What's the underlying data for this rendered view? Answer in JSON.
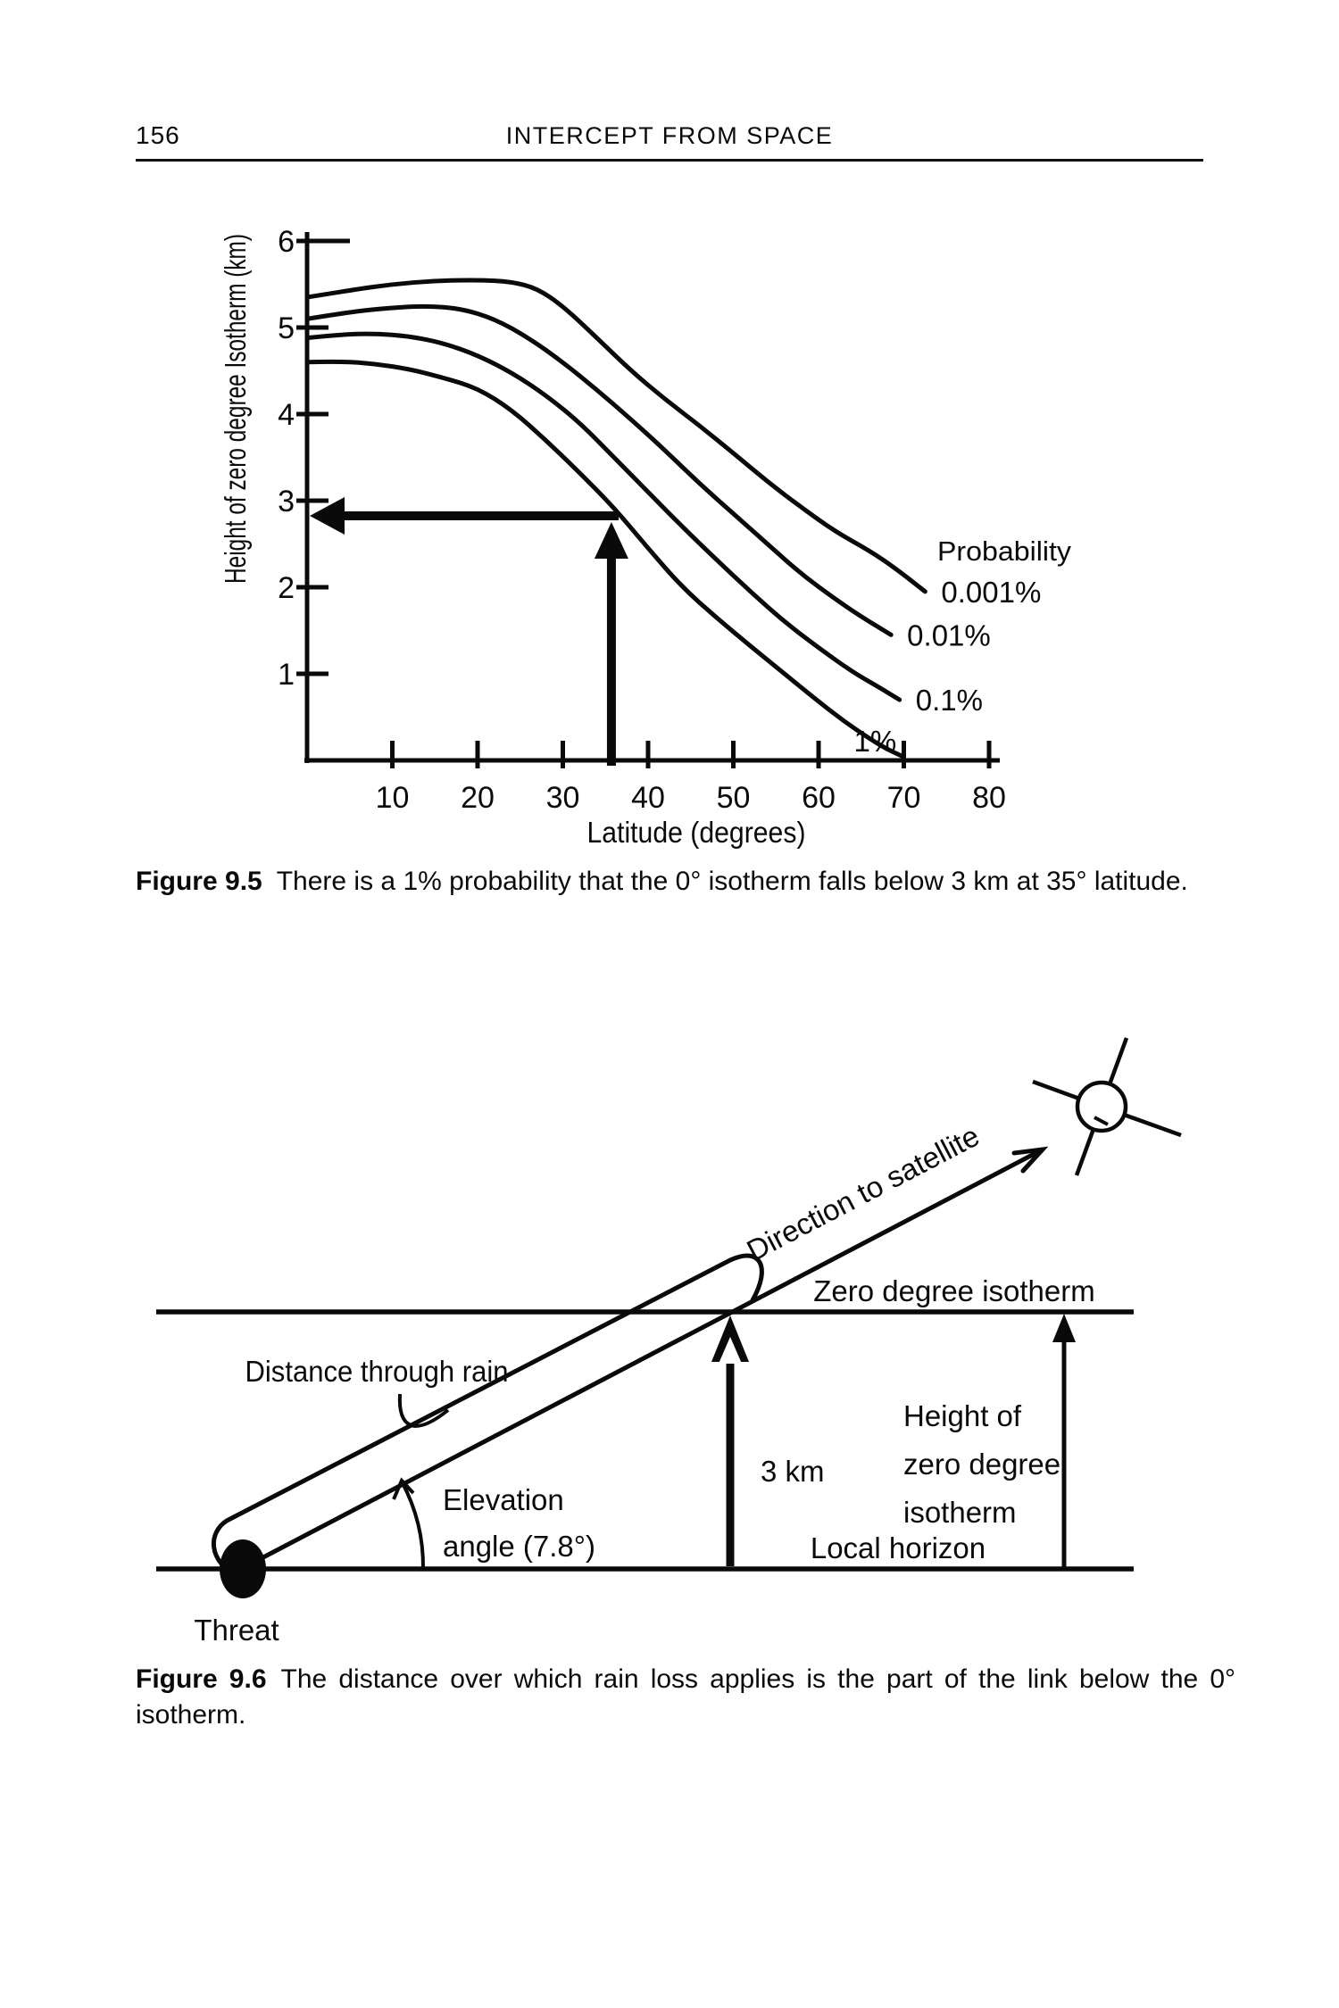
{
  "page": {
    "number": "156",
    "running_title": "INTERCEPT FROM SPACE"
  },
  "chart_data": {
    "type": "line",
    "title": "",
    "xlabel": "Latitude (degrees)",
    "ylabel": "Height of zero degree Isotherm (km)",
    "xlim": [
      0,
      80
    ],
    "ylim": [
      0,
      6
    ],
    "x_ticks": [
      10,
      20,
      30,
      40,
      50,
      60,
      70,
      80
    ],
    "y_ticks": [
      1,
      2,
      3,
      4,
      5,
      6
    ],
    "grid": "off",
    "legend_title": "Probability",
    "legend_position": "right-of-curve-ends",
    "series": [
      {
        "name": "0.001%",
        "points": [
          [
            0,
            5.35
          ],
          [
            5,
            5.43
          ],
          [
            10,
            5.5
          ],
          [
            15,
            5.54
          ],
          [
            20,
            5.55
          ],
          [
            24,
            5.53
          ],
          [
            27,
            5.45
          ],
          [
            30,
            5.25
          ],
          [
            34,
            4.88
          ],
          [
            38,
            4.5
          ],
          [
            42,
            4.17
          ],
          [
            46,
            3.87
          ],
          [
            50,
            3.55
          ],
          [
            54,
            3.22
          ],
          [
            58,
            2.92
          ],
          [
            62,
            2.64
          ],
          [
            66,
            2.42
          ],
          [
            69,
            2.22
          ],
          [
            72.5,
            1.95
          ]
        ]
      },
      {
        "name": "0.01%",
        "points": [
          [
            0,
            5.1
          ],
          [
            5,
            5.18
          ],
          [
            10,
            5.23
          ],
          [
            14,
            5.25
          ],
          [
            18,
            5.22
          ],
          [
            22,
            5.1
          ],
          [
            26,
            4.88
          ],
          [
            30,
            4.6
          ],
          [
            34,
            4.28
          ],
          [
            38,
            3.94
          ],
          [
            42,
            3.58
          ],
          [
            46,
            3.2
          ],
          [
            50,
            2.85
          ],
          [
            54,
            2.5
          ],
          [
            58,
            2.15
          ],
          [
            62,
            1.86
          ],
          [
            65,
            1.66
          ],
          [
            68.5,
            1.45
          ]
        ]
      },
      {
        "name": "0.1%",
        "points": [
          [
            0,
            4.88
          ],
          [
            4,
            4.92
          ],
          [
            8,
            4.93
          ],
          [
            12,
            4.9
          ],
          [
            16,
            4.82
          ],
          [
            20,
            4.68
          ],
          [
            24,
            4.48
          ],
          [
            28,
            4.22
          ],
          [
            32,
            3.9
          ],
          [
            36,
            3.5
          ],
          [
            40,
            3.1
          ],
          [
            44,
            2.7
          ],
          [
            48,
            2.32
          ],
          [
            52,
            1.95
          ],
          [
            56,
            1.6
          ],
          [
            60,
            1.3
          ],
          [
            64,
            1.02
          ],
          [
            67,
            0.85
          ],
          [
            69.5,
            0.7
          ]
        ]
      },
      {
        "name": "1%",
        "points": [
          [
            0,
            4.6
          ],
          [
            4,
            4.61
          ],
          [
            8,
            4.58
          ],
          [
            12,
            4.52
          ],
          [
            16,
            4.42
          ],
          [
            20,
            4.3
          ],
          [
            24,
            4.05
          ],
          [
            28,
            3.7
          ],
          [
            32,
            3.32
          ],
          [
            36,
            2.92
          ],
          [
            40,
            2.45
          ],
          [
            44,
            2.0
          ],
          [
            48,
            1.65
          ],
          [
            52,
            1.32
          ],
          [
            56,
            1.0
          ],
          [
            60,
            0.68
          ],
          [
            63,
            0.45
          ],
          [
            66,
            0.25
          ],
          [
            68,
            0.13
          ],
          [
            70,
            0.04
          ]
        ]
      }
    ],
    "annotation": {
      "arrow_latitude": 35,
      "arrow_height_km": 3
    }
  },
  "figure95": {
    "caption_label": "Figure 9.5",
    "caption_text": "There is a 1% probability that the 0° isotherm falls below 3 km at 35° latitude."
  },
  "figure96": {
    "caption_label": "Figure 9.6",
    "caption_text": "The distance over which rain loss applies is the part of the link below the 0° isotherm.",
    "labels": {
      "direction": "Direction to satellite",
      "zero_isotherm": "Zero degree isotherm",
      "distance_rain": "Distance through rain",
      "elevation_line1": "Elevation",
      "elevation_line2": "angle (7.8°)",
      "km3": "3 km",
      "height_line1": "Height of",
      "height_line2": "zero degree",
      "height_line3": "isotherm",
      "local_horizon": "Local horizon",
      "threat": "Threat"
    }
  }
}
